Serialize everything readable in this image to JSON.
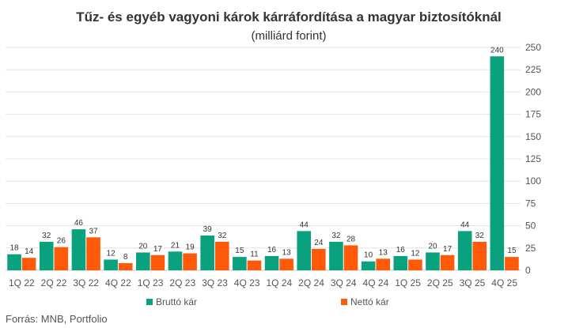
{
  "chart_data": {
    "type": "bar",
    "title": "Tűz- és egyéb vagyoni károk kárráfordítása a magyar biztosítóknál",
    "subtitle": "(milliárd forint)",
    "categories": [
      "1Q 22",
      "2Q 22",
      "3Q 22",
      "4Q 22",
      "1Q 23",
      "2Q 23",
      "3Q 23",
      "4Q 23",
      "1Q 24",
      "2Q 24",
      "3Q 24",
      "4Q 24",
      "1Q 25",
      "2Q 25",
      "3Q 25",
      "4Q 25"
    ],
    "series": [
      {
        "name": "Bruttó kár",
        "color": "#0aa17e",
        "values": [
          18,
          32,
          46,
          12,
          20,
          21,
          39,
          15,
          16,
          44,
          32,
          10,
          16,
          20,
          44,
          240
        ]
      },
      {
        "name": "Nettó kár",
        "color": "#ff5a0a",
        "values": [
          14,
          26,
          37,
          8,
          17,
          19,
          32,
          11,
          13,
          24,
          28,
          13,
          12,
          17,
          32,
          15
        ]
      }
    ],
    "ylim": [
      0,
      250
    ],
    "yticks": [
      0,
      25,
      50,
      75,
      100,
      125,
      150,
      175,
      200,
      225,
      250
    ],
    "y_axis_side": "right",
    "grid": true,
    "legend_position": "bottom",
    "source": "Forrás: MNB, Portfolio"
  }
}
